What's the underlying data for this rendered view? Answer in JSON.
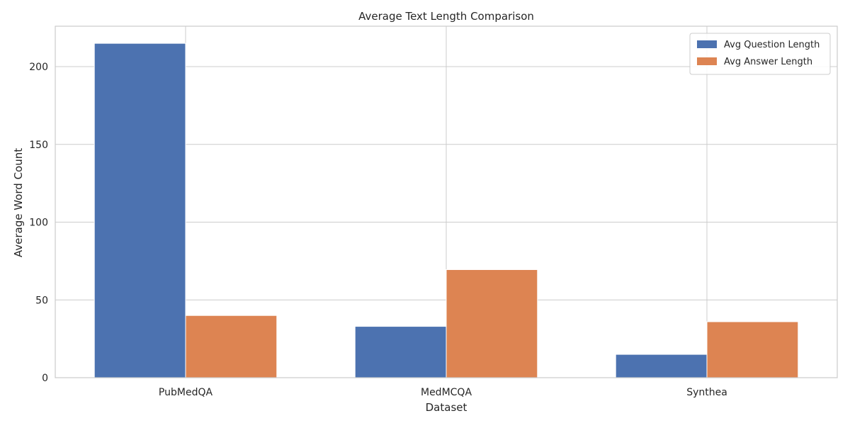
{
  "chart_data": {
    "type": "bar",
    "title": "Average Text Length Comparison",
    "xlabel": "Dataset",
    "ylabel": "Average Word Count",
    "categories": [
      "PubMedQA",
      "MedMCQA",
      "Synthea"
    ],
    "series": [
      {
        "name": "Avg Question Length",
        "values": [
          215,
          33,
          15
        ],
        "color": "#4c72b0"
      },
      {
        "name": "Avg Answer Length",
        "values": [
          40,
          69.5,
          36
        ],
        "color": "#dd8452"
      }
    ],
    "ylim": [
      0,
      226
    ],
    "yticks": [
      0,
      50,
      100,
      150,
      200
    ],
    "grid": true,
    "legend_position": "top-right"
  }
}
